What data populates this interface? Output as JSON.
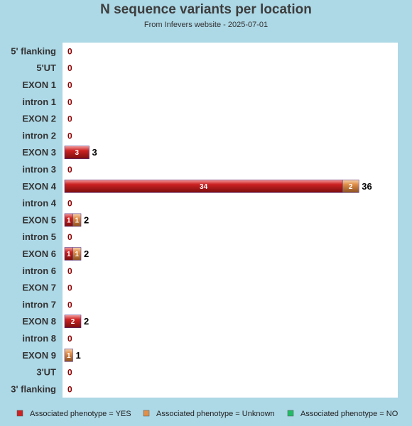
{
  "chart_data": {
    "type": "bar",
    "orientation": "horizontal",
    "stacked": true,
    "title": "N sequence variants per location",
    "subtitle": "From Infevers website - 2025-07-01",
    "categories": [
      "5' flanking",
      "5'UT",
      "EXON 1",
      "intron 1",
      "EXON 2",
      "intron 2",
      "EXON 3",
      "intron 3",
      "EXON 4",
      "intron 4",
      "EXON 5",
      "intron 5",
      "EXON 6",
      "intron 6",
      "EXON 7",
      "intron 7",
      "EXON 8",
      "intron 8",
      "EXON 9",
      "3'UT",
      "3' flanking"
    ],
    "series": [
      {
        "name": "Associated phenotype = YES",
        "color": "#cc2222",
        "values": [
          0,
          0,
          0,
          0,
          0,
          0,
          3,
          0,
          34,
          0,
          1,
          0,
          1,
          0,
          0,
          0,
          2,
          0,
          0,
          0,
          0
        ]
      },
      {
        "name": "Associated phenotype = Unknown",
        "color": "#e0904a",
        "values": [
          0,
          0,
          0,
          0,
          0,
          0,
          0,
          0,
          2,
          0,
          1,
          0,
          1,
          0,
          0,
          0,
          0,
          0,
          1,
          0,
          0
        ]
      },
      {
        "name": "Associated phenotype = NO",
        "color": "#22bb66",
        "values": [
          0,
          0,
          0,
          0,
          0,
          0,
          0,
          0,
          0,
          0,
          0,
          0,
          0,
          0,
          0,
          0,
          0,
          0,
          0,
          0,
          0
        ]
      }
    ],
    "totals": [
      0,
      0,
      0,
      0,
      0,
      0,
      3,
      0,
      36,
      0,
      2,
      0,
      2,
      0,
      0,
      0,
      2,
      0,
      1,
      0,
      0
    ],
    "xlim": [
      0,
      40.5
    ],
    "grid": false,
    "legend_position": "bottom"
  }
}
